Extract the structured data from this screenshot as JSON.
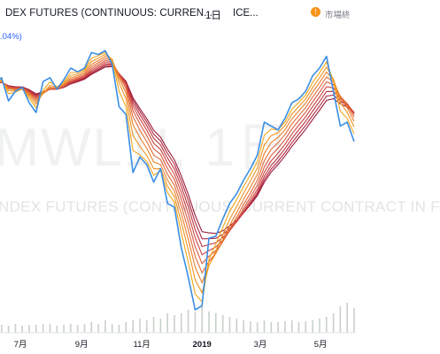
{
  "header": {
    "symbol": "DEX FUTURES (CONTINUOUS: CURREN...",
    "interval": "1日",
    "exchange": "ICE...",
    "market_badge": "!",
    "market_label": "市場終"
  },
  "change_pct": ".04%)",
  "watermark": {
    "big": "MWL1!, 1日",
    "small": "NDEX FUTURES (CONTINUOUS: CURRENT CONTRACT IN F"
  },
  "colors": {
    "price": "#3a8ee6",
    "ribbon": [
      "#f2a618",
      "#ef9322",
      "#ea7f2c",
      "#e36b36",
      "#d9573c",
      "#cc4440",
      "#bd3440",
      "#ac263e",
      "#9a1b3a"
    ],
    "volume": "#c9d1c9"
  },
  "chart_data": {
    "type": "line",
    "title": "",
    "xlabel": "",
    "ylabel": "",
    "x_ticks": [
      "7月",
      "9月",
      "11月",
      "2019",
      "3月",
      "5月"
    ],
    "x": [
      "2018-06-05",
      "2018-06-12",
      "2018-06-19",
      "2018-06-26",
      "2018-07-03",
      "2018-07-10",
      "2018-07-17",
      "2018-07-24",
      "2018-07-31",
      "2018-08-07",
      "2018-08-14",
      "2018-08-21",
      "2018-08-28",
      "2018-09-04",
      "2018-09-11",
      "2018-09-18",
      "2018-09-25",
      "2018-10-02",
      "2018-10-09",
      "2018-10-16",
      "2018-10-23",
      "2018-10-30",
      "2018-11-06",
      "2018-11-13",
      "2018-11-20",
      "2018-11-27",
      "2018-12-04",
      "2018-12-11",
      "2018-12-18",
      "2018-12-25",
      "2019-01-01",
      "2019-01-08",
      "2019-01-15",
      "2019-01-22",
      "2019-01-29",
      "2019-02-05",
      "2019-02-12",
      "2019-02-19",
      "2019-02-26",
      "2019-03-05",
      "2019-03-12",
      "2019-03-19",
      "2019-03-26",
      "2019-04-02",
      "2019-04-09",
      "2019-04-16",
      "2019-04-23",
      "2019-04-30",
      "2019-05-07",
      "2019-05-14",
      "2019-05-21",
      "2019-05-28",
      "2019-06-04"
    ],
    "series": [
      {
        "type": "line",
        "values": [
          82,
          85,
          73,
          78,
          80,
          72,
          67,
          83,
          85,
          79,
          84,
          90,
          88,
          90,
          98,
          97,
          99,
          92,
          70,
          66,
          36,
          44,
          40,
          31,
          38,
          20,
          18,
          -3,
          -18,
          -35,
          -33,
          2,
          3,
          12,
          20,
          25,
          32,
          38,
          45,
          62,
          60,
          58,
          64,
          72,
          74,
          78,
          86,
          90,
          96,
          78,
          60,
          62,
          52
        ]
      }
    ],
    "moving_average_ribbon_count": 9,
    "volume": [
      8,
      9,
      8,
      10,
      8,
      9,
      9,
      10,
      10,
      8,
      9,
      10,
      9,
      10,
      12,
      10,
      14,
      10,
      9,
      12,
      14,
      16,
      14,
      18,
      16,
      22,
      20,
      22,
      26,
      24,
      30,
      24,
      22,
      20,
      18,
      16,
      14,
      13,
      12,
      14,
      12,
      12,
      13,
      14,
      12,
      13,
      14,
      16,
      18,
      22,
      30,
      34,
      28
    ]
  }
}
